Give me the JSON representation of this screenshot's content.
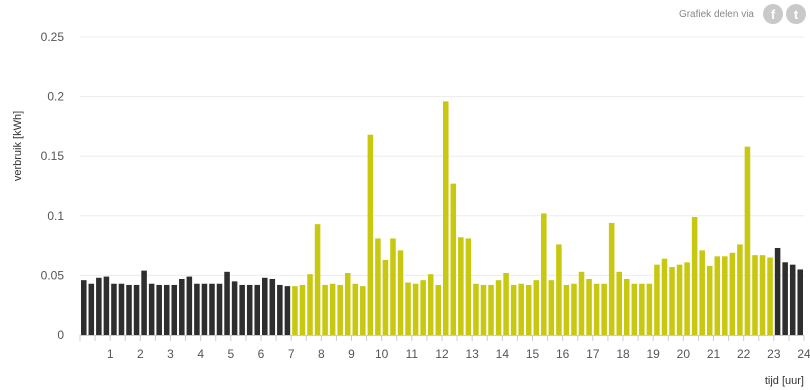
{
  "share": {
    "label": "Grafiek delen via",
    "facebook_icon": "facebook-icon",
    "twitter_icon": "twitter-icon"
  },
  "chart_data": {
    "type": "bar",
    "ylabel": "verbruik [kWh]",
    "xlabel": "tijd [uur]",
    "ylim": [
      0,
      0.25
    ],
    "yticks": [
      "0",
      "0.05",
      "0.1",
      "0.15",
      "0.2",
      "0.25"
    ],
    "x_range": [
      0,
      24
    ],
    "xticks": [
      "1",
      "2",
      "3",
      "4",
      "5",
      "6",
      "7",
      "8",
      "9",
      "10",
      "11",
      "12",
      "13",
      "14",
      "15",
      "16",
      "17",
      "18",
      "19",
      "20",
      "21",
      "22",
      "23",
      "24"
    ],
    "grid": true,
    "bar_width_hours": 0.25,
    "colors": {
      "dark": "#2e2e2e",
      "yellow": "#c8c810",
      "grid": "#ececec",
      "axis": "#cccccc"
    },
    "x": [
      0.125,
      0.375,
      0.625,
      0.875,
      1.125,
      1.375,
      1.625,
      1.875,
      2.125,
      2.375,
      2.625,
      2.875,
      3.125,
      3.375,
      3.625,
      3.875,
      4.125,
      4.375,
      4.625,
      4.875,
      5.125,
      5.375,
      5.625,
      5.875,
      6.125,
      6.375,
      6.625,
      6.875,
      7.125,
      7.375,
      7.625,
      7.875,
      8.125,
      8.375,
      8.625,
      8.875,
      9.125,
      9.375,
      9.625,
      9.875,
      10.125,
      10.375,
      10.625,
      10.875,
      11.125,
      11.375,
      11.625,
      11.875,
      12.125,
      12.375,
      12.625,
      12.875,
      13.125,
      13.375,
      13.625,
      13.875,
      14.125,
      14.375,
      14.625,
      14.875,
      15.125,
      15.375,
      15.625,
      15.875,
      16.125,
      16.375,
      16.625,
      16.875,
      17.125,
      17.375,
      17.625,
      17.875,
      18.125,
      18.375,
      18.625,
      18.875,
      19.125,
      19.375,
      19.625,
      19.875,
      20.125,
      20.375,
      20.625,
      20.875,
      21.125,
      21.375,
      21.625,
      21.875,
      22.125,
      22.375,
      22.625,
      22.875,
      23.125,
      23.375,
      23.625,
      23.875
    ],
    "values": [
      0.046,
      0.043,
      0.048,
      0.049,
      0.043,
      0.043,
      0.042,
      0.042,
      0.054,
      0.043,
      0.042,
      0.042,
      0.042,
      0.047,
      0.049,
      0.043,
      0.043,
      0.043,
      0.043,
      0.053,
      0.045,
      0.042,
      0.042,
      0.042,
      0.048,
      0.047,
      0.042,
      0.041,
      0.041,
      0.042,
      0.051,
      0.093,
      0.042,
      0.043,
      0.042,
      0.052,
      0.043,
      0.041,
      0.168,
      0.081,
      0.063,
      0.081,
      0.071,
      0.044,
      0.043,
      0.046,
      0.051,
      0.042,
      0.196,
      0.127,
      0.082,
      0.081,
      0.043,
      0.042,
      0.042,
      0.046,
      0.052,
      0.042,
      0.043,
      0.042,
      0.046,
      0.102,
      0.046,
      0.076,
      0.042,
      0.043,
      0.053,
      0.047,
      0.043,
      0.043,
      0.094,
      0.053,
      0.047,
      0.043,
      0.043,
      0.043,
      0.059,
      0.064,
      0.057,
      0.059,
      0.061,
      0.099,
      0.071,
      0.058,
      0.066,
      0.066,
      0.069,
      0.076,
      0.158,
      0.067,
      0.067,
      0.065,
      0.073,
      0.061,
      0.059,
      0.055
    ],
    "bar_colors": [
      "dark",
      "dark",
      "dark",
      "dark",
      "dark",
      "dark",
      "dark",
      "dark",
      "dark",
      "dark",
      "dark",
      "dark",
      "dark",
      "dark",
      "dark",
      "dark",
      "dark",
      "dark",
      "dark",
      "dark",
      "dark",
      "dark",
      "dark",
      "dark",
      "dark",
      "dark",
      "dark",
      "dark",
      "yellow",
      "yellow",
      "yellow",
      "yellow",
      "yellow",
      "yellow",
      "yellow",
      "yellow",
      "yellow",
      "yellow",
      "yellow",
      "yellow",
      "yellow",
      "yellow",
      "yellow",
      "yellow",
      "yellow",
      "yellow",
      "yellow",
      "yellow",
      "yellow",
      "yellow",
      "yellow",
      "yellow",
      "yellow",
      "yellow",
      "yellow",
      "yellow",
      "yellow",
      "yellow",
      "yellow",
      "yellow",
      "yellow",
      "yellow",
      "yellow",
      "yellow",
      "yellow",
      "yellow",
      "yellow",
      "yellow",
      "yellow",
      "yellow",
      "yellow",
      "yellow",
      "yellow",
      "yellow",
      "yellow",
      "yellow",
      "yellow",
      "yellow",
      "yellow",
      "yellow",
      "yellow",
      "yellow",
      "yellow",
      "yellow",
      "yellow",
      "yellow",
      "yellow",
      "yellow",
      "yellow",
      "yellow",
      "yellow",
      "yellow",
      "dark",
      "dark",
      "dark",
      "dark"
    ]
  }
}
